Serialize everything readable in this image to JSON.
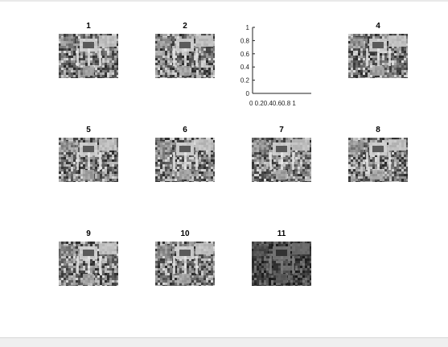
{
  "figure": {
    "subplots": [
      {
        "title": "1",
        "tone": "normal"
      },
      {
        "title": "2",
        "tone": "normal"
      },
      {
        "title": "",
        "tone": "empty"
      },
      {
        "title": "4",
        "tone": "normal"
      },
      {
        "title": "5",
        "tone": "normal"
      },
      {
        "title": "6",
        "tone": "normal"
      },
      {
        "title": "7",
        "tone": "normal"
      },
      {
        "title": "8",
        "tone": "normal"
      },
      {
        "title": "9",
        "tone": "normal"
      },
      {
        "title": "10",
        "tone": "normal"
      },
      {
        "title": "11",
        "tone": "dark"
      }
    ],
    "empty_axes": {
      "y_ticks": [
        "0",
        "0.2",
        "0.4",
        "0.6",
        "0.8",
        "1"
      ],
      "x_tick_text": "0 0.20.40.60.8 1",
      "xlim": [
        0,
        1
      ],
      "ylim": [
        0,
        1
      ]
    },
    "colors": {
      "image_dark": "#2e2e2e",
      "image_mid": "#7a7a7a",
      "image_light": "#c8c8c8"
    }
  }
}
